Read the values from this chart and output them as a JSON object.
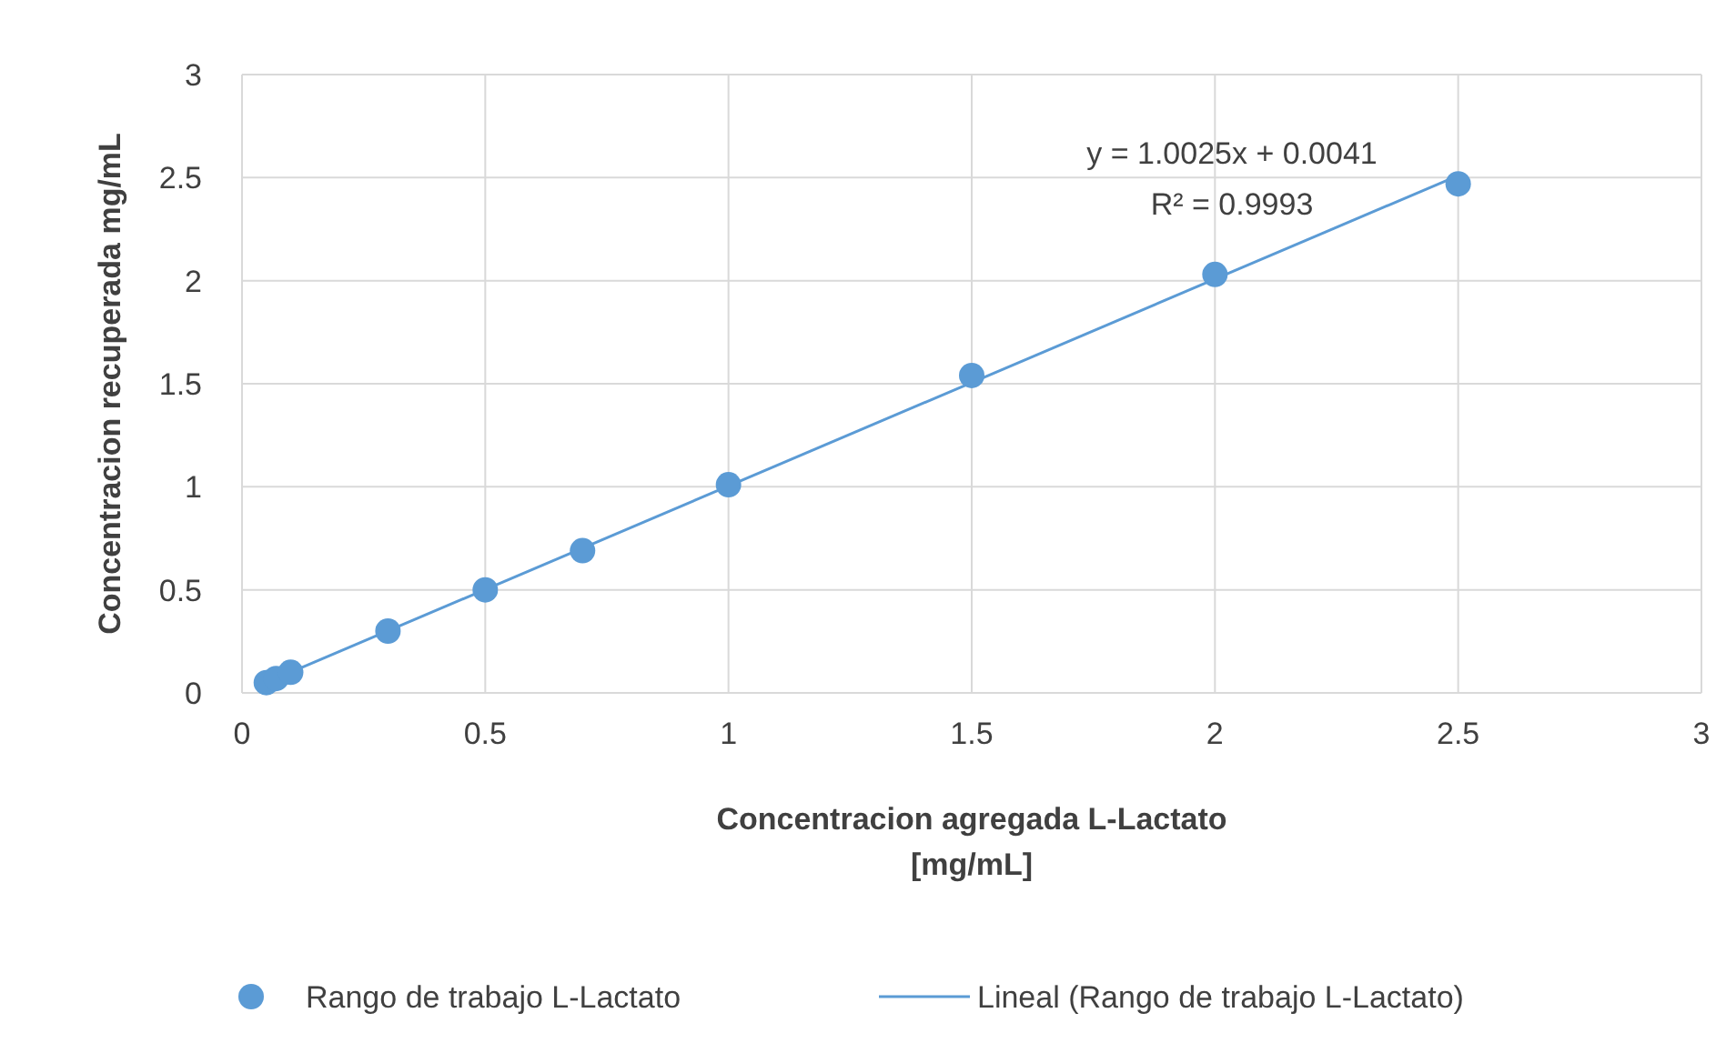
{
  "chart_data": {
    "type": "scatter",
    "xlabel": "Concentracion agregada L-Lactato\n[mg/mL]",
    "ylabel": "Concentracion recuperada mg/mL",
    "annotations": [
      "y = 1.0025x + 0.0041",
      "R² = 0.9993"
    ],
    "series": [
      {
        "name": "Rango de trabajo L-Lactato",
        "color": "#5b9bd5",
        "marker": "circle",
        "x": [
          0.05,
          0.07,
          0.1,
          0.3,
          0.5,
          0.7,
          1,
          1.5,
          2,
          2.5
        ],
        "values": [
          0.05,
          0.07,
          0.1,
          0.3,
          0.5,
          0.69,
          1.01,
          1.54,
          2.03,
          2.47
        ]
      },
      {
        "name": "Lineal (Rango de trabajo L-Lactato)",
        "type": "line",
        "color": "#5b9bd5",
        "line_style": "solid",
        "x": [
          0.05,
          2.5
        ],
        "values": [
          0.05,
          2.51
        ]
      }
    ],
    "xlim": [
      0,
      3
    ],
    "xticks": [
      0,
      0.5,
      1,
      1.5,
      2,
      2.5,
      3
    ],
    "ylim": [
      0,
      3
    ],
    "yticks": [
      0,
      0.5,
      1,
      1.5,
      2,
      2.5,
      3
    ],
    "grid": true,
    "legend": "bottom"
  }
}
